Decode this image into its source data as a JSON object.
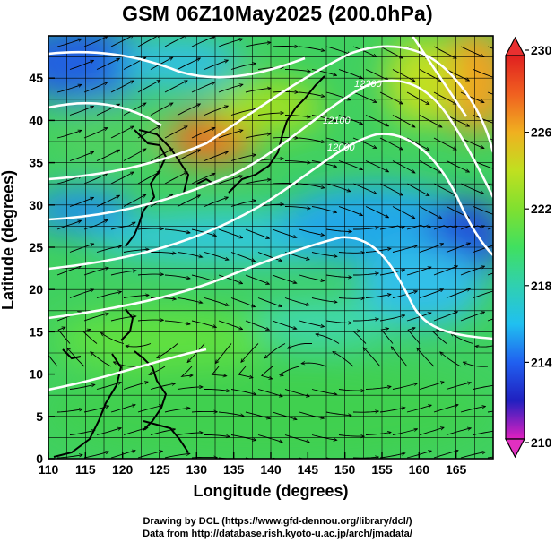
{
  "title": "GSM 06Z10May2025 (200.0hPa)",
  "axes": {
    "xlabel": "Longitude (degrees)",
    "ylabel": "Latitude  (degrees)",
    "x_ticks": [
      110,
      115,
      120,
      125,
      130,
      135,
      140,
      145,
      150,
      155,
      160,
      165
    ],
    "y_ticks": [
      0,
      5,
      10,
      15,
      20,
      25,
      30,
      35,
      40,
      45
    ],
    "xlim": [
      110,
      170
    ],
    "ylim": [
      0,
      50
    ]
  },
  "colorbar": {
    "ticks": [
      210,
      214,
      218,
      222,
      226,
      230
    ],
    "min": 210,
    "max": 230,
    "colors": [
      "#e020c0",
      "#2020c0",
      "#2060f0",
      "#20c0f0",
      "#30d0b0",
      "#40e060",
      "#80e030",
      "#c0e020",
      "#f0b020",
      "#f06020",
      "#e02020"
    ]
  },
  "contour_labels": [
    "12200",
    "12100",
    "12000"
  ],
  "credits": {
    "line1": "Drawing by DCL (https://www.gfd-dennou.org/library/dcl/)",
    "line2": "Data from http://database.rish.kyoto-u.ac.jp/arch/jmadata/"
  },
  "chart_data": {
    "type": "heatmap",
    "title": "GSM 06Z10May2025 (200.0hPa)",
    "xlabel": "Longitude (degrees)",
    "ylabel": "Latitude  (degrees)",
    "xlim": [
      110,
      170
    ],
    "ylim": [
      0,
      50
    ],
    "grid": true,
    "value_range": [
      210,
      230
    ],
    "colorbar_ticks": [
      210,
      214,
      218,
      222,
      226,
      230
    ],
    "annotations": [
      "12200",
      "12100",
      "12000"
    ]
  }
}
